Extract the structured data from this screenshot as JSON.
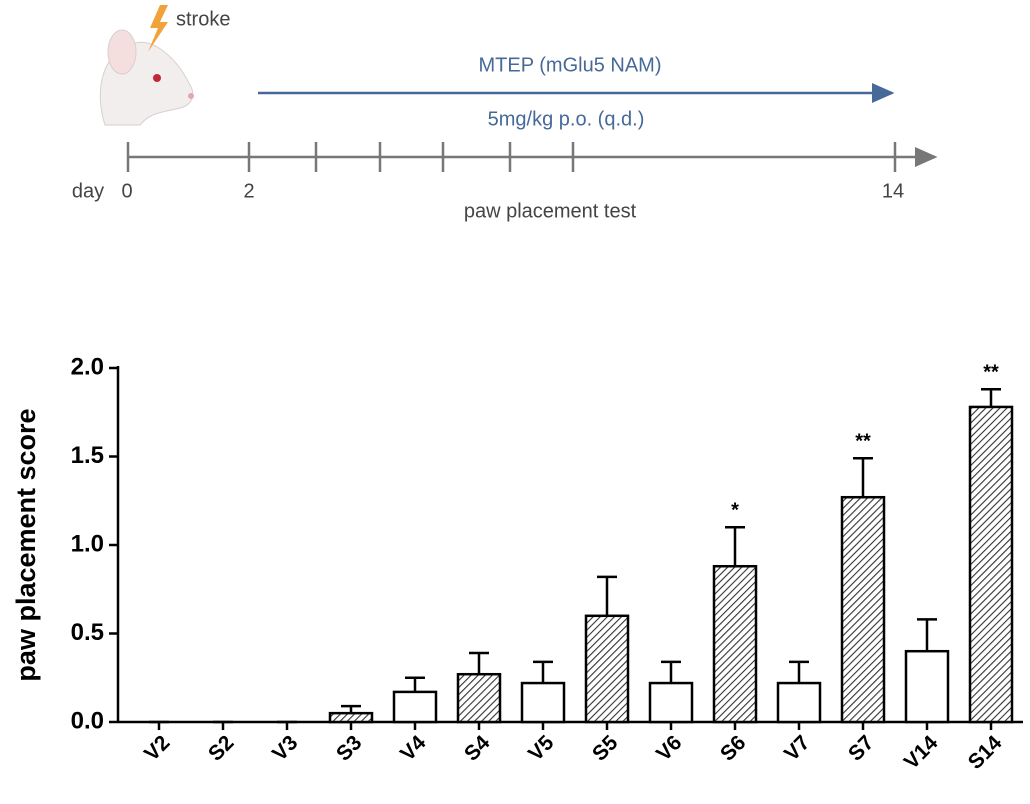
{
  "diagram": {
    "stroke_label": "stroke",
    "treatment": "MTEP (mGlu5 NAM)",
    "dose": "5mg/kg p.o. (q.d.)",
    "day_label": "day",
    "day_ticks": [
      "0",
      "2",
      "14"
    ],
    "test_label": "paw placement test"
  },
  "chart_data": {
    "type": "bar",
    "ylabel": "paw placement score",
    "categories": [
      "V2",
      "S2",
      "V3",
      "S3",
      "V4",
      "S4",
      "V5",
      "S5",
      "V6",
      "S6",
      "V7",
      "S7",
      "V14",
      "S14"
    ],
    "values": [
      0,
      0,
      0,
      0.05,
      0.17,
      0.27,
      0.22,
      0.6,
      0.22,
      0.88,
      0.22,
      1.27,
      0.4,
      1.78
    ],
    "errors": [
      0,
      0,
      0,
      0.04,
      0.08,
      0.12,
      0.12,
      0.22,
      0.12,
      0.22,
      0.12,
      0.22,
      0.18,
      0.1
    ],
    "hatched": [
      false,
      true,
      false,
      true,
      false,
      true,
      false,
      true,
      false,
      true,
      false,
      true,
      false,
      true
    ],
    "annotations": [
      {
        "category": "S6",
        "text": "*"
      },
      {
        "category": "S7",
        "text": "**"
      },
      {
        "category": "S14",
        "text": "**"
      }
    ],
    "ylim": [
      0,
      2
    ],
    "yticks": [
      {
        "value": 0,
        "label": "0.0"
      },
      {
        "value": 0.5,
        "label": "0.5"
      },
      {
        "value": 1,
        "label": "1.0"
      },
      {
        "value": 1.5,
        "label": "1.5"
      },
      {
        "value": 2,
        "label": "2.0"
      }
    ],
    "color": "#000000"
  }
}
